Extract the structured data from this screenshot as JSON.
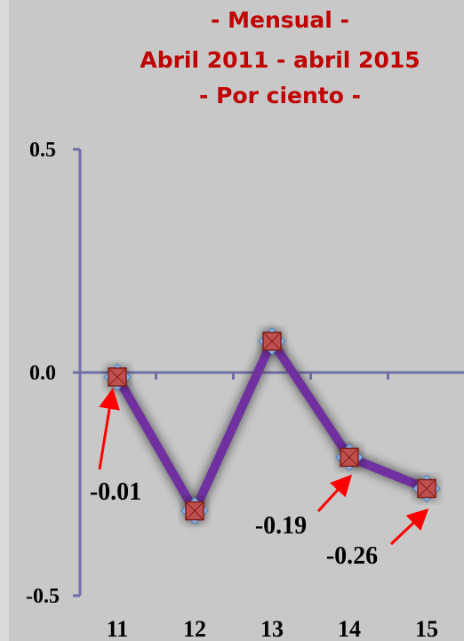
{
  "chart_data": {
    "type": "line",
    "title_lines": [
      "- Mensual -",
      "Abril 2011 - abril 2015",
      "- Por ciento -"
    ],
    "categories": [
      "11",
      "12",
      "13",
      "14",
      "15"
    ],
    "values": [
      -0.01,
      -0.31,
      0.07,
      -0.19,
      -0.26
    ],
    "yticks": [
      "0.5",
      "0.0",
      "-0.5"
    ],
    "ytick_values": [
      0.5,
      0.0,
      -0.5
    ],
    "ylim": [
      -0.5,
      0.5
    ],
    "data_labels": [
      {
        "index": 0,
        "text": "-0.01"
      },
      {
        "index": 3,
        "text": "-0.19"
      },
      {
        "index": 4,
        "text": "-0.26"
      }
    ],
    "grid": false,
    "colors": {
      "line": "#7030a0",
      "axis": "#6f6fa8",
      "marker": "#c0504d",
      "arrow": "#ff0000",
      "title": "#c00000"
    }
  }
}
